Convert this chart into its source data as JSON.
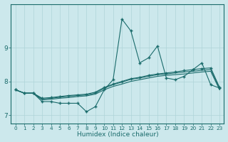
{
  "xlabel": "Humidex (Indice chaleur)",
  "bg_color": "#cce8ec",
  "line_color": "#1a6b6b",
  "grid_color": "#aed4d8",
  "x_values": [
    0,
    1,
    2,
    3,
    4,
    5,
    6,
    7,
    8,
    9,
    10,
    11,
    12,
    13,
    14,
    15,
    16,
    17,
    18,
    19,
    20,
    21,
    22,
    23
  ],
  "series_main": [
    7.75,
    7.65,
    7.65,
    7.4,
    7.4,
    7.35,
    7.35,
    7.35,
    7.1,
    7.25,
    7.75,
    8.05,
    9.85,
    9.5,
    8.55,
    8.7,
    9.05,
    8.1,
    8.05,
    8.15,
    8.35,
    8.55,
    7.9,
    7.8
  ],
  "series_smooth1": [
    7.75,
    7.65,
    7.65,
    7.5,
    7.52,
    7.55,
    7.58,
    7.6,
    7.62,
    7.68,
    7.82,
    7.92,
    8.0,
    8.08,
    8.12,
    8.18,
    8.22,
    8.25,
    8.28,
    8.32,
    8.35,
    8.38,
    8.4,
    7.82
  ],
  "series_smooth2": [
    7.75,
    7.65,
    7.65,
    7.48,
    7.5,
    7.53,
    7.56,
    7.58,
    7.6,
    7.65,
    7.8,
    7.9,
    7.98,
    8.06,
    8.1,
    8.15,
    8.2,
    8.22,
    8.25,
    8.28,
    8.3,
    8.33,
    8.35,
    7.79
  ],
  "series_bottom": [
    7.75,
    7.65,
    7.65,
    7.45,
    7.47,
    7.5,
    7.52,
    7.55,
    7.57,
    7.62,
    7.75,
    7.85,
    7.92,
    8.0,
    8.05,
    8.1,
    8.15,
    8.18,
    8.2,
    8.22,
    8.25,
    8.28,
    8.3,
    7.75
  ],
  "ylim": [
    6.75,
    10.3
  ],
  "yticks": [
    7,
    8,
    9
  ],
  "xticks": [
    0,
    1,
    2,
    3,
    4,
    5,
    6,
    7,
    8,
    9,
    10,
    11,
    12,
    13,
    14,
    15,
    16,
    17,
    18,
    19,
    20,
    21,
    22,
    23
  ]
}
